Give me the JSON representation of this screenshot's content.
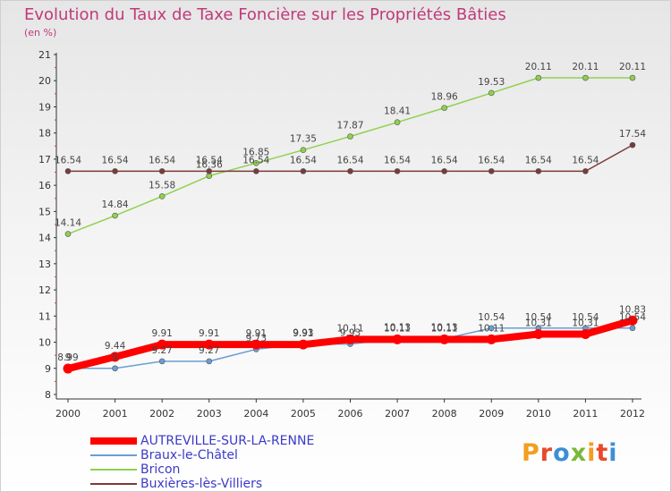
{
  "header": {
    "title": "Evolution du Taux de Taxe Foncière sur les Propriétés Bâties",
    "subtitle": "(en %)"
  },
  "logo": {
    "text": "Proxiti",
    "colors": [
      "#f29e1f",
      "#e8492b",
      "#3d8fd6",
      "#7ab83c",
      "#f29e1f",
      "#e8492b",
      "#3d8fd6"
    ]
  },
  "chart_data": {
    "type": "line",
    "title": "Evolution du Taux de Taxe Foncière sur les Propriétés Bâties",
    "ylabel": "(en %)",
    "xlabel": "",
    "ylim": [
      8,
      21
    ],
    "yticks": [
      8,
      9,
      10,
      11,
      12,
      13,
      14,
      15,
      16,
      17,
      18,
      19,
      20,
      21
    ],
    "grid": false,
    "legend_position": "bottom-left",
    "categories": [
      "2000",
      "2001",
      "2002",
      "2003",
      "2004",
      "2005",
      "2006",
      "2007",
      "2008",
      "2009",
      "2010",
      "2011",
      "2012"
    ],
    "series": [
      {
        "name": "Bricon",
        "color": "#8fd14f",
        "values": [
          14.14,
          14.84,
          15.58,
          16.36,
          16.85,
          17.35,
          17.87,
          18.41,
          18.96,
          19.53,
          20.11,
          20.11,
          20.11
        ],
        "labels": [
          "14.14",
          "14.84",
          "15.58",
          "16.36",
          "16.85",
          "17.35",
          "17.87",
          "18.41",
          "18.96",
          "19.53",
          "20.11",
          "20.11",
          "20.11"
        ]
      },
      {
        "name": "Buxières-lès-Villiers",
        "color": "#7a3a3a",
        "values": [
          16.54,
          16.54,
          16.54,
          16.54,
          16.54,
          16.54,
          16.54,
          16.54,
          16.54,
          16.54,
          16.54,
          16.54,
          17.54
        ],
        "labels": [
          "16.54",
          "16.54",
          "16.54",
          "16.54",
          "16.54",
          "16.54",
          "16.54",
          "16.54",
          "16.54",
          "16.54",
          "16.54",
          "16.54",
          "17.54"
        ]
      },
      {
        "name": "Braux-le-Châtel",
        "color": "#6a9ed4",
        "values": [
          9,
          9,
          9.27,
          9.27,
          9.73,
          9.93,
          9.93,
          10.13,
          10.13,
          10.54,
          10.54,
          10.54,
          10.54
        ],
        "labels": [
          "9",
          "9",
          "9.27",
          "9.27",
          "9.73",
          "9.93",
          "9.93",
          "10.13",
          "10.13",
          "10.54",
          "10.54",
          "10.54",
          "10.54"
        ]
      },
      {
        "name": "AUTREVILLE-SUR-LA-RENNE",
        "color": "#ff0000",
        "values": [
          8.99,
          9.44,
          9.91,
          9.91,
          9.91,
          9.91,
          10.11,
          10.11,
          10.11,
          10.11,
          10.31,
          10.31,
          10.83
        ],
        "labels": [
          "8.99",
          "9.44",
          "9.91",
          "9.91",
          "9.91",
          "9.91",
          "10.11",
          "10.11",
          "10.11",
          "10.11",
          "10.31",
          "10.31",
          "10.83"
        ]
      }
    ],
    "legend": [
      {
        "name": "AUTREVILLE-SUR-LA-RENNE",
        "color": "#ff0000"
      },
      {
        "name": "Braux-le-Châtel",
        "color": "#6a9ed4"
      },
      {
        "name": "Bricon",
        "color": "#8fd14f"
      },
      {
        "name": "Buxières-lès-Villiers",
        "color": "#7a3a3a"
      }
    ]
  }
}
